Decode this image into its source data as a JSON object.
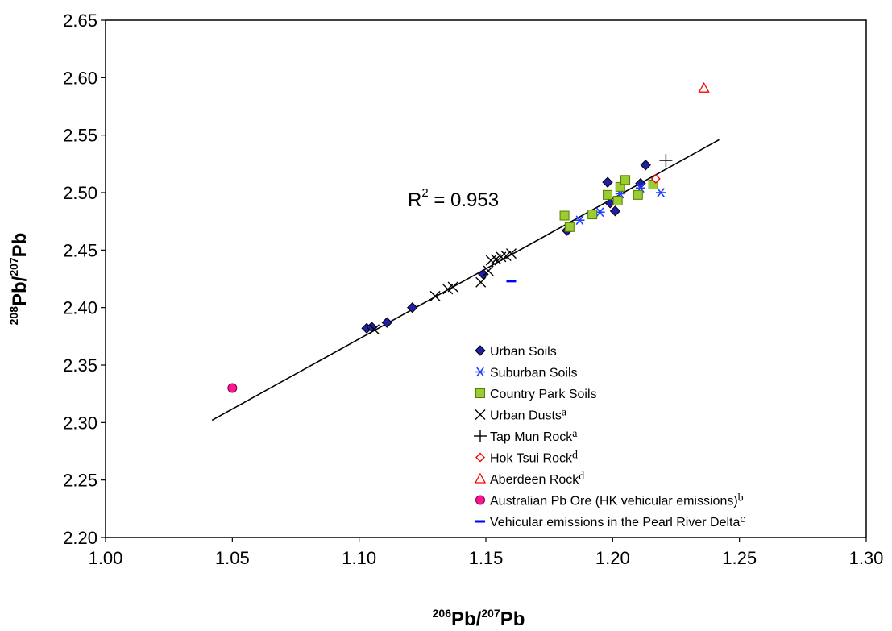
{
  "chart_data": {
    "type": "scatter",
    "xlabel": {
      "iso1": "206",
      "mid": "Pb/",
      "iso2": "207",
      "end": "Pb"
    },
    "ylabel": {
      "iso1": "208",
      "mid": "Pb/",
      "iso2": "207",
      "end": "Pb"
    },
    "xlim": [
      1.0,
      1.3
    ],
    "ylim": [
      2.2,
      2.65
    ],
    "xticks": [
      "1.00",
      "1.05",
      "1.10",
      "1.15",
      "1.20",
      "1.25",
      "1.30"
    ],
    "yticks": [
      "2.20",
      "2.25",
      "2.30",
      "2.35",
      "2.40",
      "2.45",
      "2.50",
      "2.55",
      "2.60",
      "2.65"
    ],
    "grid": false,
    "legend_position": "bottom-right",
    "annotation": {
      "prefix": "R",
      "sup": "2",
      "suffix": " = 0.953"
    },
    "trendline": {
      "x": [
        1.042,
        1.242
      ],
      "y": [
        2.302,
        2.546
      ]
    },
    "series": [
      {
        "name": "Urban Soils",
        "sup": "",
        "marker": "diamond",
        "color": "#1f1fa8",
        "x": [
          1.103,
          1.105,
          1.111,
          1.121,
          1.149,
          1.182,
          1.198,
          1.199,
          1.201,
          1.211,
          1.213
        ],
        "y": [
          2.382,
          2.383,
          2.387,
          2.4,
          2.429,
          2.467,
          2.509,
          2.491,
          2.484,
          2.508,
          2.524
        ]
      },
      {
        "name": "Suburban Soils",
        "sup": "",
        "marker": "asterisk",
        "color": "#1f3fff",
        "x": [
          1.187,
          1.195,
          1.203,
          1.211,
          1.219
        ],
        "y": [
          2.476,
          2.483,
          2.499,
          2.504,
          2.5
        ]
      },
      {
        "name": "Country Park Soils",
        "sup": "",
        "marker": "square",
        "color": "#9acd32",
        "x": [
          1.181,
          1.183,
          1.192,
          1.198,
          1.202,
          1.203,
          1.205,
          1.21,
          1.216
        ],
        "y": [
          2.48,
          2.47,
          2.481,
          2.498,
          2.493,
          2.505,
          2.511,
          2.498,
          2.507
        ]
      },
      {
        "name": "Urban Dusts",
        "sup": "a",
        "marker": "x",
        "color": "#000000",
        "x": [
          1.106,
          1.13,
          1.135,
          1.137,
          1.148,
          1.151,
          1.152,
          1.154,
          1.156,
          1.158,
          1.16
        ],
        "y": [
          2.381,
          2.41,
          2.416,
          2.418,
          2.422,
          2.432,
          2.441,
          2.442,
          2.444,
          2.445,
          2.447
        ]
      },
      {
        "name": "Tap Mun Rock",
        "sup": "a",
        "marker": "plus",
        "color": "#000000",
        "x": [
          1.221
        ],
        "y": [
          2.528
        ]
      },
      {
        "name": "Hok Tsui Rock",
        "sup": "d",
        "marker": "open-diamond",
        "color": "#ff0000",
        "x": [
          1.217
        ],
        "y": [
          2.512
        ]
      },
      {
        "name": "Aberdeen Rock",
        "sup": "d",
        "marker": "open-triangle",
        "color": "#ff0000",
        "x": [
          1.236
        ],
        "y": [
          2.591
        ]
      },
      {
        "name": "Australian Pb Ore (HK vehicular emissions)",
        "sup": "b",
        "marker": "circle",
        "color": "#ff1493",
        "x": [
          1.05
        ],
        "y": [
          2.33
        ]
      },
      {
        "name": "Vehicular emissions in the Pearl River Delta",
        "sup": "c",
        "marker": "dash",
        "color": "#0000ff",
        "x": [
          1.16
        ],
        "y": [
          2.423
        ]
      }
    ]
  }
}
